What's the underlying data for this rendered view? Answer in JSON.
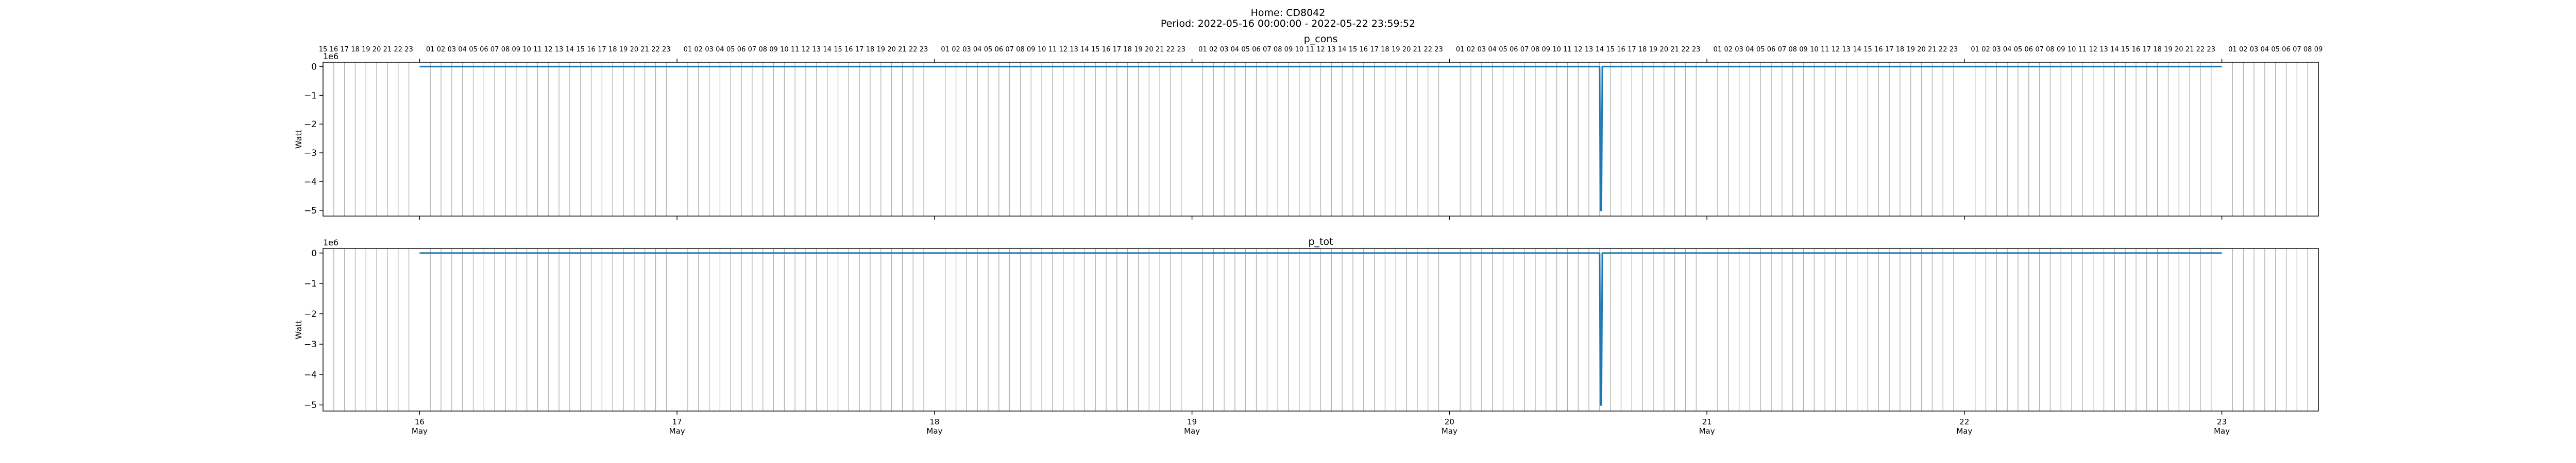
{
  "figure": {
    "title_line1": "Home: CD8042",
    "title_line2": "Period: 2022-05-16 00:00:00 - 2022-05-22 23:59:52"
  },
  "chart_data": [
    {
      "type": "line",
      "title": "p_cons",
      "ylabel": "Watt",
      "offset_text": "1e6",
      "ylim": [
        -5.2,
        0.15
      ],
      "yticks": [
        0,
        -1,
        -2,
        -3,
        -4,
        -5
      ],
      "ytick_labels": [
        "0",
        "−1",
        "−2",
        "−3",
        "−4",
        "−5"
      ],
      "xlim": [
        "2022-05-15 15:00",
        "2022-05-23 09:00"
      ],
      "grid": "vertical hourly lines",
      "hour_labels_position": "top",
      "line_color": "#1f77b4",
      "grid_color": "#b0b0b0",
      "x": [
        "2022-05-16 00:00",
        "2022-05-20 14:00",
        "2022-05-20 14:05",
        "2022-05-20 14:10",
        "2022-05-20 14:15",
        "2022-05-22 23:59:52"
      ],
      "y": [
        0,
        0,
        -5.0,
        -5.0,
        0,
        0
      ]
    },
    {
      "type": "line",
      "title": "p_tot",
      "ylabel": "Watt",
      "offset_text": "1e6",
      "ylim": [
        -5.2,
        0.15
      ],
      "yticks": [
        0,
        -1,
        -2,
        -3,
        -4,
        -5
      ],
      "ytick_labels": [
        "0",
        "−1",
        "−2",
        "−3",
        "−4",
        "−5"
      ],
      "xlim": [
        "2022-05-15 15:00",
        "2022-05-23 09:00"
      ],
      "grid": "vertical hourly lines",
      "line_color": "#1f77b4",
      "grid_color": "#b0b0b0",
      "x": [
        "2022-05-16 00:00",
        "2022-05-20 14:00",
        "2022-05-20 14:05",
        "2022-05-20 14:10",
        "2022-05-20 14:15",
        "2022-05-22 23:59:52"
      ],
      "y": [
        0,
        0,
        -5.0,
        -5.0,
        0,
        0
      ],
      "xtick_days": [
        "16",
        "17",
        "18",
        "19",
        "20",
        "21",
        "22",
        "23"
      ],
      "xtick_month": "May"
    }
  ]
}
